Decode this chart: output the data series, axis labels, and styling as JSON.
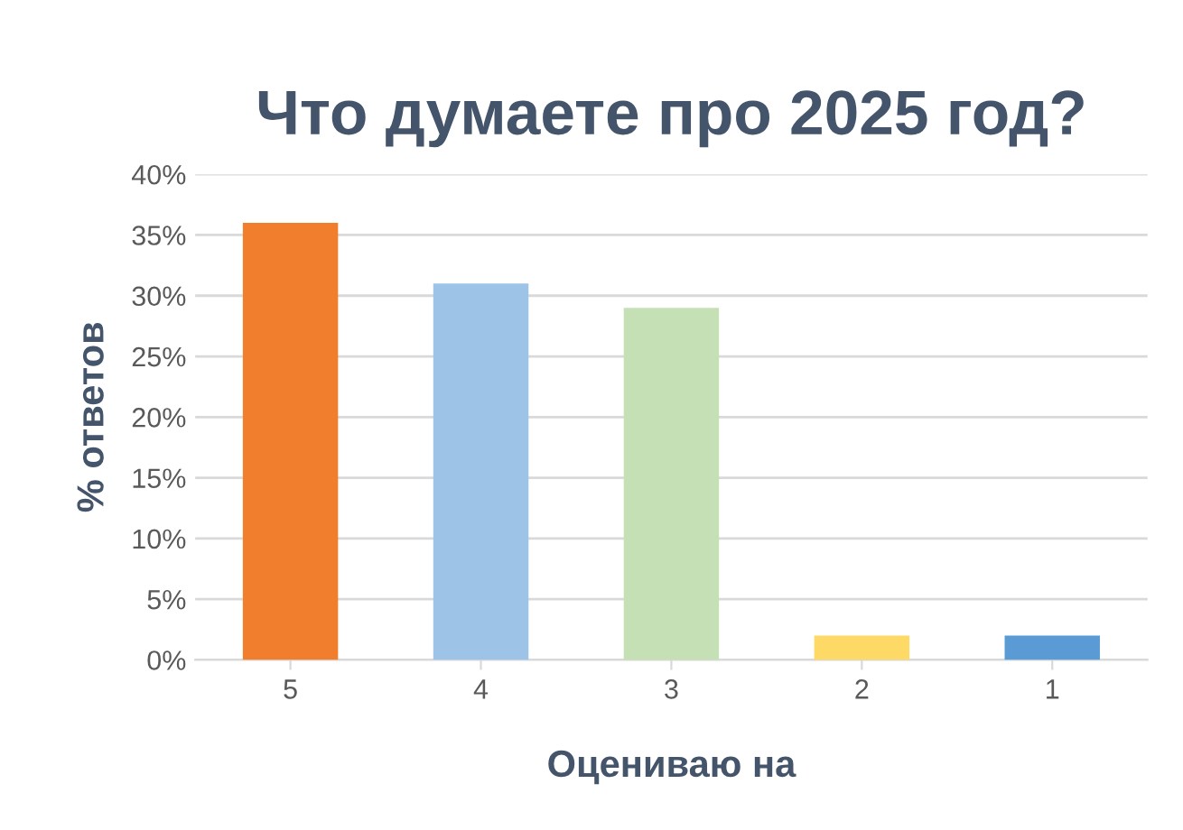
{
  "chart_data": {
    "type": "bar",
    "title": "Что думаете про 2025 год?",
    "xlabel": "Оцениваю на",
    "ylabel": "% ответов",
    "categories": [
      "5",
      "4",
      "3",
      "2",
      "1"
    ],
    "values": [
      36,
      31,
      29,
      2,
      2
    ],
    "colors": [
      "#f07e2c",
      "#9dc3e6",
      "#c5e0b4",
      "#ffd966",
      "#5b9bd5"
    ],
    "ylim": [
      0,
      40
    ],
    "yticks": [
      {
        "value": 0,
        "label": "0%"
      },
      {
        "value": 5,
        "label": "5%"
      },
      {
        "value": 10,
        "label": "10%"
      },
      {
        "value": 15,
        "label": "15%"
      },
      {
        "value": 20,
        "label": "20%"
      },
      {
        "value": 25,
        "label": "25%"
      },
      {
        "value": 30,
        "label": "30%"
      },
      {
        "value": 35,
        "label": "35%"
      },
      {
        "value": 40,
        "label": "40%"
      }
    ],
    "grid": "y",
    "legend": false
  }
}
